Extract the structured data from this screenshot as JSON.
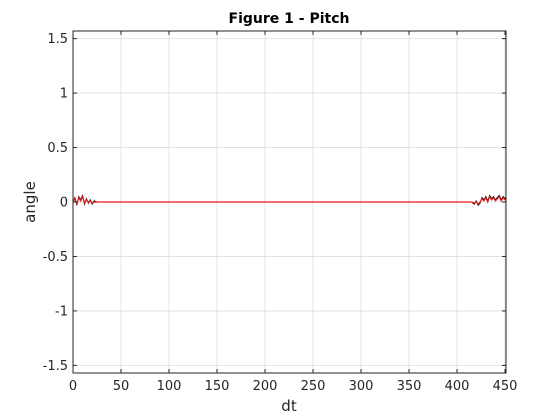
{
  "chart_data": {
    "type": "line",
    "title": "Figure 1 - Pitch",
    "xlabel": "dt",
    "ylabel": "angle",
    "xlim": [
      0,
      451
    ],
    "ylim": [
      -1.57,
      1.57
    ],
    "xticks": [
      0,
      50,
      100,
      150,
      200,
      250,
      300,
      350,
      400,
      450
    ],
    "yticks": [
      -1.5,
      -1,
      -0.5,
      0,
      0.5,
      1,
      1.5
    ],
    "xtick_labels": [
      "0",
      "50",
      "100",
      "150",
      "200",
      "250",
      "300",
      "350",
      "400",
      "450"
    ],
    "ytick_labels": [
      "-1.5",
      "-1",
      "-0.5",
      "0",
      "0.5",
      "1",
      "1.5"
    ],
    "grid": true,
    "series": [
      {
        "color": "#000000",
        "x": [
          0,
          2,
          4,
          6,
          8,
          10,
          12,
          14,
          16,
          18,
          20,
          22,
          25,
          100,
          200,
          300,
          400,
          415,
          418,
          420,
          422,
          424,
          426,
          428,
          430,
          432,
          434,
          436,
          438,
          440,
          442,
          444,
          446,
          448,
          450,
          451
        ],
        "y": [
          0.0,
          0.04,
          -0.03,
          0.05,
          0.02,
          0.06,
          -0.02,
          0.03,
          -0.01,
          0.02,
          -0.02,
          0.01,
          0.0,
          0.0,
          0.0,
          0.0,
          0.0,
          0.0,
          -0.02,
          0.01,
          -0.03,
          -0.01,
          0.04,
          0.02,
          0.05,
          0.01,
          0.06,
          0.03,
          0.05,
          0.02,
          0.04,
          0.06,
          0.02,
          0.05,
          0.03,
          0.04
        ]
      },
      {
        "color": "#e41a1c",
        "x": [
          0,
          2,
          4,
          6,
          8,
          10,
          12,
          14,
          16,
          18,
          20,
          22,
          25,
          100,
          200,
          300,
          400,
          415,
          418,
          420,
          422,
          424,
          426,
          428,
          430,
          432,
          434,
          436,
          438,
          440,
          442,
          444,
          446,
          448,
          450,
          451
        ],
        "y": [
          0.0,
          0.03,
          -0.02,
          0.04,
          0.01,
          0.05,
          -0.01,
          0.02,
          0.0,
          0.01,
          -0.01,
          0.0,
          0.0,
          0.0,
          0.0,
          0.0,
          0.0,
          0.0,
          -0.01,
          0.0,
          -0.02,
          0.0,
          0.03,
          0.01,
          0.04,
          0.0,
          0.05,
          0.02,
          0.04,
          0.01,
          0.03,
          0.05,
          0.01,
          0.04,
          0.02,
          0.03
        ]
      }
    ],
    "colors": {
      "axis": "#262626",
      "grid": "#dedede",
      "background": "#ffffff"
    }
  }
}
